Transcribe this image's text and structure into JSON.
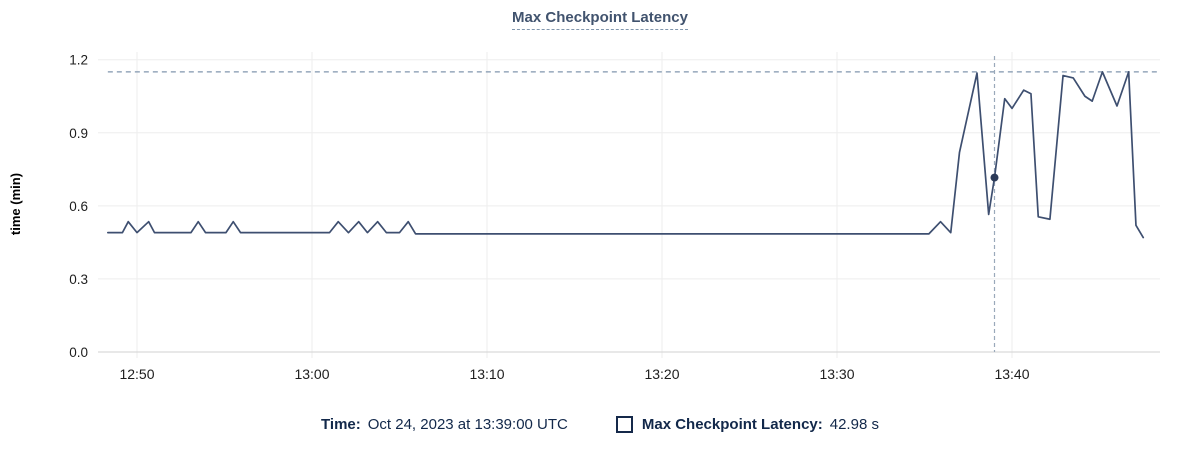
{
  "title": "Max Checkpoint Latency",
  "y_axis": {
    "label": "time (min)",
    "tick_labels": [
      "0.0",
      "0.3",
      "0.6",
      "0.9",
      "1.2"
    ],
    "tick_values": [
      0.0,
      0.3,
      0.6,
      0.9,
      1.2
    ]
  },
  "x_axis": {
    "tick_labels": [
      "12:50",
      "13:00",
      "13:10",
      "13:20",
      "13:30",
      "13:40"
    ]
  },
  "legend": {
    "time_label": "Time:",
    "time_value": "Oct 24, 2023 at 13:39:00 UTC",
    "series_label": "Max Checkpoint Latency:",
    "series_value": "42.98 s"
  },
  "colors": {
    "line": "#3e4f70",
    "dot": "#2b3a58",
    "threshold": "#8096ad",
    "cursor": "#9aa9ba",
    "grid": "#eeeeee",
    "axis": "#d2d2d2",
    "title_text": "#41536e",
    "legend_text": "#12284a",
    "tick_text": "#1d1d1d"
  },
  "chart_data": {
    "type": "line",
    "title": "Max Checkpoint Latency",
    "ylabel": "time (min)",
    "ylim": [
      0,
      1.2
    ],
    "x_range": [
      "12:47:50",
      "13:48:30"
    ],
    "grid": true,
    "threshold_line": 1.15,
    "cursor": {
      "time": "13:39:00",
      "value_min": 0.716,
      "value_label": "42.98 s",
      "date_label": "Oct 24, 2023 at 13:39:00 UTC"
    },
    "series": [
      {
        "name": "Max Checkpoint Latency",
        "unit": "min",
        "points": [
          {
            "t": "12:48:20",
            "v": 0.49
          },
          {
            "t": "12:49:10",
            "v": 0.49
          },
          {
            "t": "12:49:30",
            "v": 0.535
          },
          {
            "t": "12:50:00",
            "v": 0.49
          },
          {
            "t": "12:50:40",
            "v": 0.535
          },
          {
            "t": "12:51:00",
            "v": 0.49
          },
          {
            "t": "12:53:05",
            "v": 0.49
          },
          {
            "t": "12:53:30",
            "v": 0.535
          },
          {
            "t": "12:53:55",
            "v": 0.49
          },
          {
            "t": "12:55:05",
            "v": 0.49
          },
          {
            "t": "12:55:30",
            "v": 0.535
          },
          {
            "t": "12:55:55",
            "v": 0.49
          },
          {
            "t": "13:01:00",
            "v": 0.49
          },
          {
            "t": "13:01:30",
            "v": 0.535
          },
          {
            "t": "13:02:05",
            "v": 0.49
          },
          {
            "t": "13:02:40",
            "v": 0.535
          },
          {
            "t": "13:03:10",
            "v": 0.49
          },
          {
            "t": "13:03:45",
            "v": 0.535
          },
          {
            "t": "13:04:15",
            "v": 0.49
          },
          {
            "t": "13:05:00",
            "v": 0.49
          },
          {
            "t": "13:05:30",
            "v": 0.535
          },
          {
            "t": "13:05:55",
            "v": 0.485
          },
          {
            "t": "13:35:15",
            "v": 0.485
          },
          {
            "t": "13:35:55",
            "v": 0.535
          },
          {
            "t": "13:36:30",
            "v": 0.49
          },
          {
            "t": "13:37:00",
            "v": 0.82
          },
          {
            "t": "13:38:00",
            "v": 1.145
          },
          {
            "t": "13:38:40",
            "v": 0.565
          },
          {
            "t": "13:39:00",
            "v": 0.716
          },
          {
            "t": "13:39:35",
            "v": 1.04
          },
          {
            "t": "13:40:00",
            "v": 1.0
          },
          {
            "t": "13:40:40",
            "v": 1.075
          },
          {
            "t": "13:41:05",
            "v": 1.06
          },
          {
            "t": "13:41:30",
            "v": 0.555
          },
          {
            "t": "13:42:10",
            "v": 0.545
          },
          {
            "t": "13:42:55",
            "v": 1.135
          },
          {
            "t": "13:43:30",
            "v": 1.125
          },
          {
            "t": "13:44:10",
            "v": 1.05
          },
          {
            "t": "13:44:35",
            "v": 1.03
          },
          {
            "t": "13:45:10",
            "v": 1.15
          },
          {
            "t": "13:46:00",
            "v": 1.01
          },
          {
            "t": "13:46:40",
            "v": 1.15
          },
          {
            "t": "13:47:05",
            "v": 0.52
          },
          {
            "t": "13:47:30",
            "v": 0.47
          }
        ]
      }
    ]
  }
}
